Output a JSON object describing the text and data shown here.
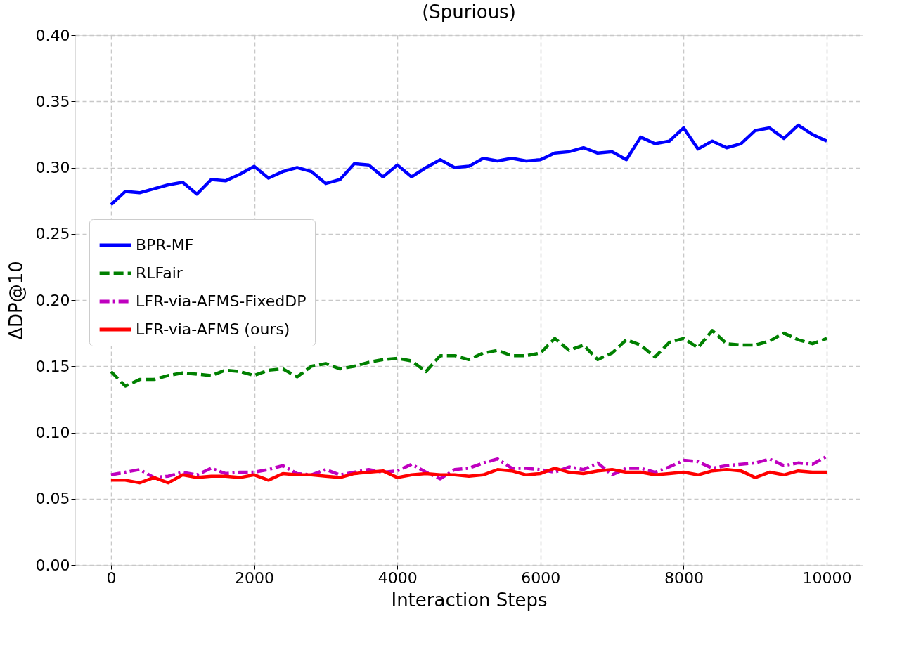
{
  "chart_data": {
    "type": "line",
    "title": "(Spurious)",
    "xlabel": "Interaction Steps",
    "ylabel": "ΔDP@10",
    "x": [
      0,
      200,
      400,
      600,
      800,
      1000,
      1200,
      1400,
      1600,
      1800,
      2000,
      2200,
      2400,
      2600,
      2800,
      3000,
      3200,
      3400,
      3600,
      3800,
      4000,
      4200,
      4400,
      4600,
      4800,
      5000,
      5200,
      5400,
      5600,
      5800,
      6000,
      6200,
      6400,
      6600,
      6800,
      7000,
      7200,
      7400,
      7600,
      7800,
      8000,
      8200,
      8400,
      8600,
      8800,
      9000,
      9200,
      9400,
      9600,
      9800,
      10000
    ],
    "series": [
      {
        "name": "BPR-MF",
        "color": "#0000ff",
        "line_style": "solid",
        "values": [
          0.272,
          0.282,
          0.281,
          0.284,
          0.287,
          0.289,
          0.28,
          0.291,
          0.29,
          0.295,
          0.301,
          0.292,
          0.297,
          0.3,
          0.297,
          0.288,
          0.291,
          0.303,
          0.302,
          0.293,
          0.302,
          0.293,
          0.3,
          0.306,
          0.3,
          0.301,
          0.307,
          0.305,
          0.307,
          0.305,
          0.306,
          0.311,
          0.312,
          0.315,
          0.311,
          0.312,
          0.306,
          0.323,
          0.318,
          0.32,
          0.33,
          0.314,
          0.32,
          0.315,
          0.318,
          0.328,
          0.33,
          0.322,
          0.332,
          0.325,
          0.32
        ]
      },
      {
        "name": "RLFair",
        "color": "#008000",
        "line_style": "dashed",
        "values": [
          0.146,
          0.135,
          0.14,
          0.14,
          0.143,
          0.145,
          0.144,
          0.143,
          0.147,
          0.146,
          0.143,
          0.147,
          0.148,
          0.142,
          0.15,
          0.152,
          0.148,
          0.15,
          0.153,
          0.155,
          0.156,
          0.154,
          0.146,
          0.158,
          0.158,
          0.155,
          0.16,
          0.162,
          0.158,
          0.158,
          0.16,
          0.171,
          0.162,
          0.166,
          0.155,
          0.16,
          0.17,
          0.166,
          0.157,
          0.168,
          0.171,
          0.164,
          0.177,
          0.167,
          0.166,
          0.166,
          0.169,
          0.175,
          0.17,
          0.167,
          0.171
        ]
      },
      {
        "name": "LFR-via-AFMS-FixedDP",
        "color": "#bf00bf",
        "line_style": "dashdot",
        "values": [
          0.068,
          0.07,
          0.072,
          0.066,
          0.067,
          0.07,
          0.068,
          0.073,
          0.069,
          0.07,
          0.07,
          0.072,
          0.075,
          0.069,
          0.068,
          0.072,
          0.068,
          0.07,
          0.072,
          0.07,
          0.071,
          0.076,
          0.07,
          0.065,
          0.072,
          0.073,
          0.077,
          0.08,
          0.073,
          0.073,
          0.072,
          0.07,
          0.074,
          0.072,
          0.077,
          0.068,
          0.073,
          0.073,
          0.07,
          0.074,
          0.079,
          0.078,
          0.073,
          0.075,
          0.076,
          0.077,
          0.08,
          0.075,
          0.077,
          0.076,
          0.082
        ]
      },
      {
        "name": "LFR-via-AFMS (ours)",
        "color": "#ff0000",
        "line_style": "solid",
        "values": [
          0.064,
          0.064,
          0.062,
          0.066,
          0.062,
          0.068,
          0.066,
          0.067,
          0.067,
          0.066,
          0.068,
          0.064,
          0.069,
          0.068,
          0.068,
          0.067,
          0.066,
          0.069,
          0.07,
          0.071,
          0.066,
          0.068,
          0.069,
          0.068,
          0.068,
          0.067,
          0.068,
          0.072,
          0.071,
          0.068,
          0.069,
          0.073,
          0.07,
          0.069,
          0.071,
          0.072,
          0.07,
          0.07,
          0.068,
          0.069,
          0.07,
          0.068,
          0.071,
          0.072,
          0.071,
          0.066,
          0.07,
          0.068,
          0.071,
          0.07,
          0.07
        ]
      }
    ],
    "xlim": [
      -500,
      10500
    ],
    "xticks": [
      0,
      2000,
      4000,
      6000,
      8000,
      10000
    ],
    "ylim": [
      0,
      0.4
    ],
    "yticks": [
      {
        "value": 0,
        "label": "0.00"
      },
      {
        "value": 0.05,
        "label": "0.05"
      },
      {
        "value": 0.1,
        "label": "0.10"
      },
      {
        "value": 0.15,
        "label": "0.15"
      },
      {
        "value": 0.2,
        "label": "0.20"
      },
      {
        "value": 0.25,
        "label": "0.25"
      },
      {
        "value": 0.3,
        "label": "0.30"
      },
      {
        "value": 0.35,
        "label": "0.35"
      },
      {
        "value": 0.4,
        "label": "0.40"
      }
    ],
    "grid": true,
    "legend": "left",
    "marker": "none"
  }
}
